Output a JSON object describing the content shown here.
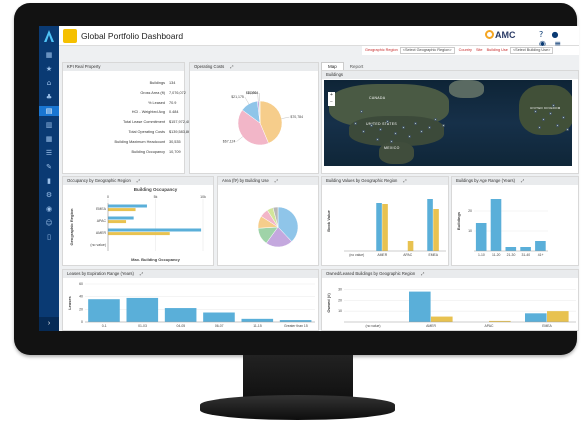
{
  "app": {
    "title": "Global Portfolio Dashboard",
    "brand": "AMC"
  },
  "sidebar": {
    "icons": [
      "dashboard-icon",
      "star-icon",
      "home-icon",
      "tree-icon",
      "report-icon",
      "building-icon",
      "grid-icon",
      "list-icon",
      "tool-icon",
      "chart-icon",
      "gear-icon",
      "location-icon",
      "people-icon",
      "document-icon"
    ],
    "active_index": 4
  },
  "header_icons": [
    "help-icon",
    "notifications-icon",
    "user-icon",
    "menu-icon"
  ],
  "filters": {
    "geo_label": "Geographic Region",
    "geo_value": "<Select Geographic Region>",
    "country_label": "Country",
    "site_label": "Site",
    "building_use_label": "Building Use",
    "building_use_value": "<Select Building Use>"
  },
  "kpi": {
    "title": "KPI Real Property",
    "rows": [
      {
        "label": "Buildings",
        "value": "134"
      },
      {
        "label": "Gross Area (ft)",
        "value": "7,076,072"
      },
      {
        "label": "% Leased",
        "value": "70.9"
      },
      {
        "label": "HCI - Weighted Avg",
        "value": "0.484"
      },
      {
        "label": "Total Lease Commitment",
        "value": "$157,972,406"
      },
      {
        "label": "Total Operating Costs",
        "value": "$139,583,860"
      },
      {
        "label": "Building Maximum Headcount",
        "value": "30,535"
      },
      {
        "label": "Building Occupancy",
        "value": "10,709"
      }
    ]
  },
  "operating_costs": {
    "title": "Operating Costs",
    "chart_data": {
      "type": "pie",
      "slices": [
        {
          "label": "$70,784",
          "value": 70784
        },
        {
          "label": "$67,124",
          "value": 67124
        },
        {
          "label": "$21,175",
          "value": 21175
        },
        {
          "label": "$2,050",
          "value": 2050
        },
        {
          "label": "$1,014",
          "value": 1014
        }
      ],
      "colors": [
        "#f6cd8b",
        "#f2b6c8",
        "#8fc5e9",
        "#c4a8de",
        "#9fd3a8"
      ]
    }
  },
  "map": {
    "tabs": [
      "Map",
      "Report"
    ],
    "active_tab": "Map",
    "layer_title": "Buildings",
    "labels": [
      "CANADA",
      "UNITED STATES",
      "MEXICO",
      "UNITED KINGDOM"
    ]
  },
  "occupancy": {
    "title": "Occupancy by Geographic Region",
    "chart_data": {
      "type": "bar",
      "title": "Building Occupancy",
      "xlabel": "Max. Building Occupancy",
      "ylabel": "Geographic Region",
      "categories": [
        "EMEA",
        "APAC",
        "AMER",
        "(no value)"
      ],
      "x_ticks": [
        "0",
        "5k",
        "10k"
      ],
      "series": [
        {
          "values": [
            4100,
            2700,
            9800,
            0
          ],
          "color": "#5aafd9"
        },
        {
          "values": [
            2900,
            1900,
            6500,
            0
          ],
          "color": "#e8c250"
        }
      ],
      "xlim": [
        0,
        10000
      ]
    }
  },
  "area_by_use": {
    "title": "Area (ft²) by Building Use",
    "chart_data": {
      "type": "pie",
      "slices": [
        {
          "value": 38
        },
        {
          "value": 22
        },
        {
          "value": 14
        },
        {
          "value": 10
        },
        {
          "value": 7
        },
        {
          "value": 5
        },
        {
          "value": 4
        }
      ],
      "colors": [
        "#8fc5e9",
        "#c4a8de",
        "#9fd3a8",
        "#f6cd8b",
        "#f2b6c8",
        "#d2e59a",
        "#b7b7b7"
      ]
    }
  },
  "building_values": {
    "title": "Building Values by Geographic Region",
    "chart_data": {
      "type": "bar",
      "ylabel": "Book Value",
      "categories": [
        "(no value)",
        "AMER",
        "APAC",
        "EMEA"
      ],
      "series": [
        {
          "values": [
            0,
            48,
            0,
            52
          ],
          "color": "#5aafd9"
        },
        {
          "values": [
            0,
            47,
            10,
            42
          ],
          "color": "#e8c250"
        }
      ],
      "ylim": [
        0,
        60
      ]
    }
  },
  "buildings_by_age": {
    "title": "Buildings by Age Range (Years)",
    "chart_data": {
      "type": "bar",
      "ylabel": "Buildings",
      "categories": [
        "1-10",
        "11-20",
        "21-30",
        "31-40",
        "41+"
      ],
      "y_ticks": [
        "10",
        "20"
      ],
      "values": [
        14,
        26,
        2,
        2,
        5
      ],
      "color": "#5aafd9",
      "ylim": [
        0,
        30
      ]
    }
  },
  "leases": {
    "title": "Leases by Expiration Range (Years)",
    "chart_data": {
      "type": "bar",
      "ylabel": "Leases",
      "categories": [
        "0-1",
        "01-03",
        "04-05",
        "06-07",
        "11-15",
        "Greater than 15"
      ],
      "y_ticks": [
        "0",
        "20",
        "40",
        "60"
      ],
      "values": [
        36,
        38,
        22,
        15,
        5,
        3
      ],
      "color": "#5aafd9",
      "ylim": [
        0,
        60
      ]
    }
  },
  "owned_leased": {
    "title": "Owned/Leased Buildings by Geographic Region",
    "chart_data": {
      "type": "bar",
      "ylabel": "Owned (#)",
      "categories": [
        "(no value)",
        "AMER",
        "APAC",
        "EMEA"
      ],
      "y_ticks": [
        "10",
        "20",
        "30"
      ],
      "series": [
        {
          "values": [
            0,
            28,
            0,
            8
          ],
          "color": "#5aafd9"
        },
        {
          "values": [
            0,
            5,
            1,
            10
          ],
          "color": "#e8c250"
        }
      ],
      "ylim": [
        0,
        35
      ]
    }
  }
}
